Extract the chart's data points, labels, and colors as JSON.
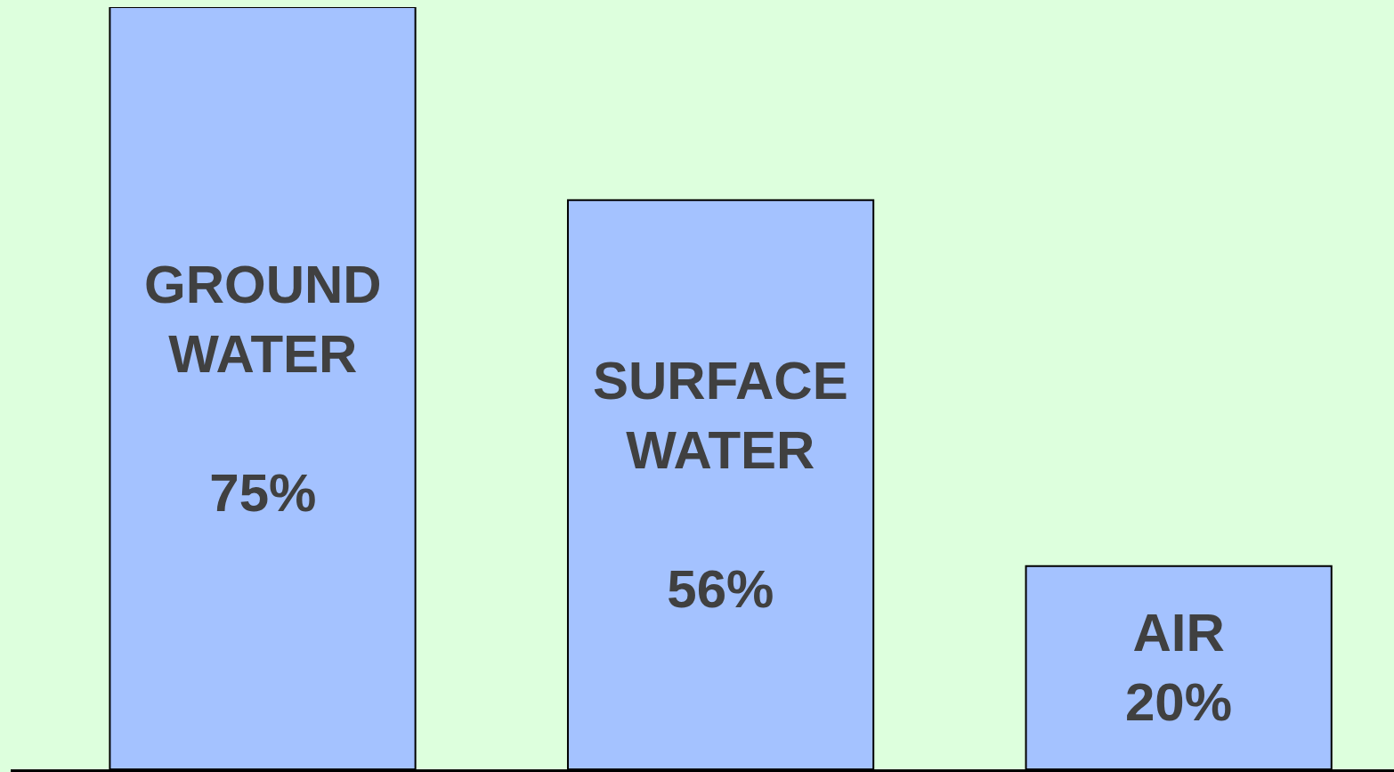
{
  "chart_data": {
    "type": "bar",
    "categories": [
      "GROUND WATER",
      "SURFACE WATER",
      "AIR"
    ],
    "values": [
      75,
      56,
      20
    ],
    "value_labels": [
      "75%",
      "56%",
      "20%"
    ],
    "color": "#a4c2ff",
    "grid": false,
    "legend": false
  }
}
